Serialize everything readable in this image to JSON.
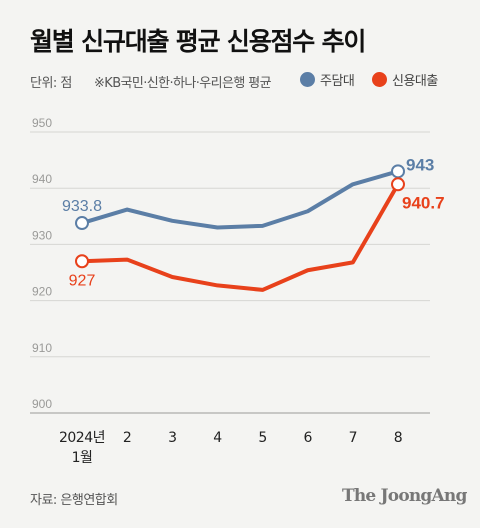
{
  "title": "월별 신규대출 평균 신용점수 추이",
  "unit_label": "단위: 점",
  "note": "※KB국민·신한·하나·우리은행 평균",
  "source": "자료: 은행연합회",
  "brand": "The JoongAng",
  "colors": {
    "mortgage": "#5b7ea6",
    "credit": "#e8411b",
    "grid": "#d6d6d3"
  },
  "chart_data": {
    "type": "line",
    "categories": [
      "2024년 1월",
      "2",
      "3",
      "4",
      "5",
      "6",
      "7",
      "8"
    ],
    "x_tick_lines": [
      [
        "2024년",
        "1월"
      ],
      [
        "2"
      ],
      [
        "3"
      ],
      [
        "4"
      ],
      [
        "5"
      ],
      [
        "6"
      ],
      [
        "7"
      ],
      [
        "8"
      ]
    ],
    "ylim": [
      900,
      950
    ],
    "yticks": [
      900,
      910,
      920,
      930,
      940,
      950
    ],
    "grid": true,
    "legend_position": "top-right",
    "series": [
      {
        "name": "주담대",
        "color": "#5b7ea6",
        "values": [
          933.8,
          936.2,
          934.2,
          933.0,
          933.3,
          935.9,
          940.7,
          943.0
        ],
        "labels": [
          {
            "index": 0,
            "text": "933.8"
          },
          {
            "index": 7,
            "text": "943"
          }
        ]
      },
      {
        "name": "신용대출",
        "color": "#e8411b",
        "values": [
          927.0,
          927.3,
          924.2,
          922.7,
          921.9,
          925.4,
          926.8,
          940.7
        ],
        "labels": [
          {
            "index": 0,
            "text": "927"
          },
          {
            "index": 7,
            "text": "940.7"
          }
        ]
      }
    ]
  }
}
